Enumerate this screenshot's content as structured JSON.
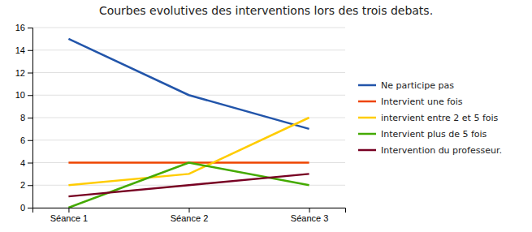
{
  "chart_data": {
    "type": "line",
    "title": "Courbes evolutives des interventions lors des trois debats.",
    "categories": [
      "Séance 1",
      "Séance 2",
      "Séance 3"
    ],
    "series": [
      {
        "name": "Ne participe pas",
        "color": "#2255AA",
        "values": [
          15,
          10,
          7
        ]
      },
      {
        "name": "Intervient une fois",
        "color": "#EE4400",
        "values": [
          4,
          4,
          4
        ]
      },
      {
        "name": "intervient entre 2 et 5 fois",
        "color": "#FFCC00",
        "values": [
          2,
          3,
          8
        ]
      },
      {
        "name": "Intervient plus de 5 fois",
        "color": "#44AA00",
        "values": [
          0,
          4,
          2
        ]
      },
      {
        "name": "Intervention du professeur.",
        "color": "#770022",
        "values": [
          1,
          2,
          3
        ]
      }
    ],
    "ylim": [
      0,
      16
    ],
    "yticks": [
      0,
      2,
      4,
      6,
      8,
      10,
      12,
      14,
      16
    ],
    "grid": true,
    "legend": "right"
  }
}
